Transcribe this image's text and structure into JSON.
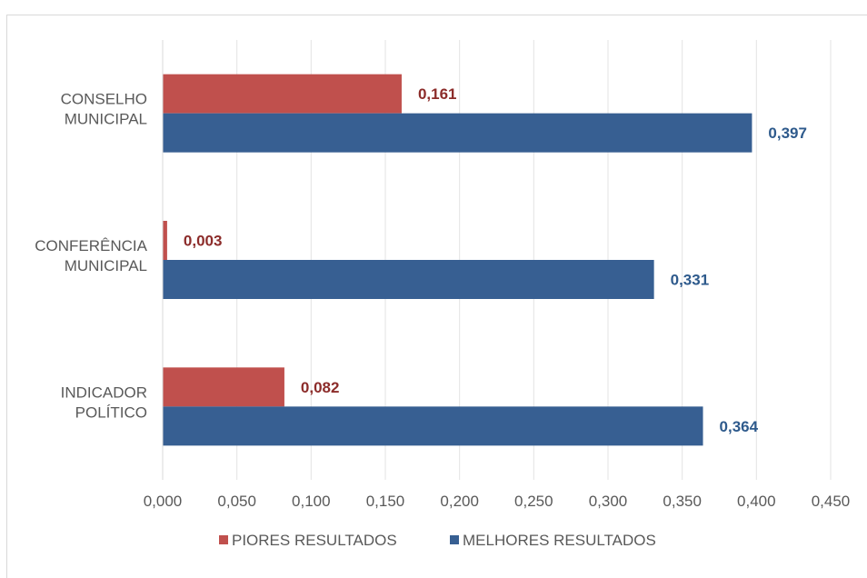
{
  "chart_data": {
    "type": "bar",
    "orientation": "horizontal",
    "categories": [
      [
        "CONSELHO",
        "MUNICIPAL"
      ],
      [
        "CONFERÊNCIA",
        "MUNICIPAL"
      ],
      [
        "INDICADOR",
        "POLÍTICO"
      ]
    ],
    "series": [
      {
        "name": "PIORES RESULTADOS",
        "color": "#c0504d",
        "label_color": "#8c2c2a",
        "values": [
          0.161,
          0.003,
          0.082
        ],
        "labels": [
          "0,161",
          "0,003",
          "0,082"
        ]
      },
      {
        "name": "MELHORES RESULTADOS",
        "color": "#375f92",
        "label_color": "#2e5a8c",
        "values": [
          0.397,
          0.331,
          0.364
        ],
        "labels": [
          "0,397",
          "0,331",
          "0,364"
        ]
      }
    ],
    "xlim": [
      0,
      0.45
    ],
    "ticks": [
      0,
      0.05,
      0.1,
      0.15,
      0.2,
      0.25,
      0.3,
      0.35,
      0.4,
      0.45
    ],
    "tick_labels": [
      "0,000",
      "0,050",
      "0,100",
      "0,150",
      "0,200",
      "0,250",
      "0,300",
      "0,350",
      "0,400",
      "0,450"
    ],
    "grid": true,
    "legend_position": "bottom",
    "title": "",
    "xlabel": "",
    "ylabel": ""
  }
}
